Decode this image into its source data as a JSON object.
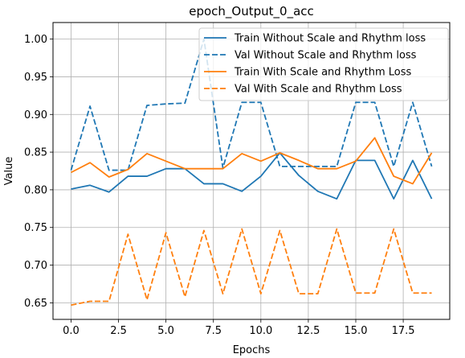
{
  "chart_data": {
    "type": "line",
    "title": "epoch_Output_0_acc",
    "xlabel": "Epochs",
    "ylabel": "Value",
    "xlim": [
      -0.95,
      19.95
    ],
    "ylim": [
      0.628,
      1.022
    ],
    "xticks": [
      0.0,
      2.5,
      5.0,
      7.5,
      10.0,
      12.5,
      15.0,
      17.5
    ],
    "xtick_labels": [
      "0.0",
      "2.5",
      "5.0",
      "7.5",
      "10.0",
      "12.5",
      "15.0",
      "17.5"
    ],
    "yticks": [
      0.65,
      0.7,
      0.75,
      0.8,
      0.85,
      0.9,
      0.95,
      1.0
    ],
    "ytick_labels": [
      "0.65",
      "0.70",
      "0.75",
      "0.80",
      "0.85",
      "0.90",
      "0.95",
      "1.00"
    ],
    "grid": true,
    "legend_position": "top-right",
    "x": [
      0,
      1,
      2,
      3,
      4,
      5,
      6,
      7,
      8,
      9,
      10,
      11,
      12,
      13,
      14,
      15,
      16,
      17,
      18,
      19
    ],
    "series": [
      {
        "name": "Train Without Scale and Rhythm loss",
        "color": "#1f77b4",
        "dash": "solid",
        "values": [
          0.801,
          0.806,
          0.797,
          0.818,
          0.818,
          0.828,
          0.828,
          0.808,
          0.808,
          0.798,
          0.818,
          0.849,
          0.819,
          0.798,
          0.788,
          0.839,
          0.839,
          0.788,
          0.839,
          0.788
        ]
      },
      {
        "name": "Val Without Scale and Rhythm loss",
        "color": "#1f77b4",
        "dash": "dashed",
        "values": [
          0.826,
          0.911,
          0.826,
          0.826,
          0.912,
          0.914,
          0.915,
          1.0,
          0.829,
          0.916,
          0.916,
          0.831,
          0.831,
          0.831,
          0.831,
          0.916,
          0.916,
          0.831,
          0.916,
          0.831
        ]
      },
      {
        "name": "Train With Scale and Rhythm Loss",
        "color": "#ff7f0e",
        "dash": "solid",
        "values": [
          0.823,
          0.836,
          0.817,
          0.827,
          0.848,
          0.838,
          0.828,
          0.828,
          0.828,
          0.848,
          0.838,
          0.849,
          0.839,
          0.828,
          0.828,
          0.838,
          0.869,
          0.818,
          0.808,
          0.849
        ]
      },
      {
        "name": "Val With Scale and Rhythm Loss",
        "color": "#ff7f0e",
        "dash": "dashed",
        "values": [
          0.647,
          0.652,
          0.652,
          0.741,
          0.654,
          0.743,
          0.658,
          0.746,
          0.662,
          0.748,
          0.662,
          0.746,
          0.662,
          0.662,
          0.748,
          0.663,
          0.663,
          0.748,
          0.663,
          0.663
        ]
      }
    ]
  }
}
